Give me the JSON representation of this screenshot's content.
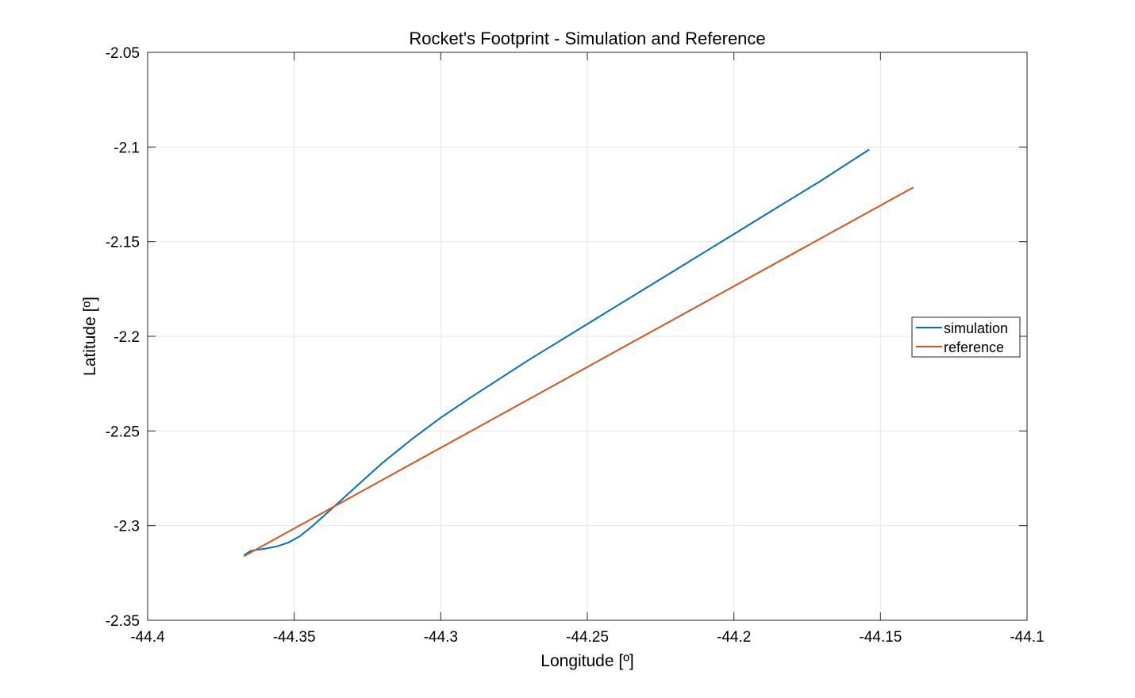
{
  "chart_data": {
    "type": "line",
    "title": "Rocket's Footprint - Simulation and Reference",
    "xlabel": "Longitude [º]",
    "ylabel": "Latitude [º]",
    "xlim": [
      -44.4,
      -44.1
    ],
    "ylim": [
      -2.35,
      -2.05
    ],
    "xticks": [
      -44.4,
      -44.35,
      -44.3,
      -44.25,
      -44.2,
      -44.15,
      -44.1
    ],
    "yticks": [
      -2.35,
      -2.3,
      -2.25,
      -2.2,
      -2.15,
      -2.1,
      -2.05
    ],
    "xtick_labels": [
      "-44.4",
      "-44.35",
      "-44.3",
      "-44.25",
      "-44.2",
      "-44.15",
      "-44.1"
    ],
    "ytick_labels": [
      "-2.35",
      "-2.3",
      "-2.25",
      "-2.2",
      "-2.15",
      "-2.1",
      "-2.05"
    ],
    "grid": true,
    "legend": {
      "position": "right",
      "entries": [
        "simulation",
        "reference"
      ]
    },
    "series": [
      {
        "name": "simulation",
        "color": "#0072BD",
        "x": [
          -44.367,
          -44.365,
          -44.363,
          -44.36,
          -44.356,
          -44.352,
          -44.348,
          -44.344,
          -44.34,
          -44.335,
          -44.33,
          -44.32,
          -44.31,
          -44.3,
          -44.29,
          -44.28,
          -44.27,
          -44.26,
          -44.25,
          -44.24,
          -44.23,
          -44.22,
          -44.21,
          -44.2,
          -44.19,
          -44.18,
          -44.17,
          -44.16,
          -44.154
        ],
        "y": [
          -2.3155,
          -2.3135,
          -2.3128,
          -2.3122,
          -2.311,
          -2.309,
          -2.3055,
          -2.3005,
          -2.295,
          -2.288,
          -2.281,
          -2.267,
          -2.2545,
          -2.243,
          -2.2325,
          -2.2225,
          -2.2125,
          -2.203,
          -2.1935,
          -2.184,
          -2.1745,
          -2.165,
          -2.1555,
          -2.146,
          -2.1365,
          -2.127,
          -2.1175,
          -2.1075,
          -2.1015
        ]
      },
      {
        "name": "reference",
        "color": "#D95319",
        "x": [
          -44.367,
          -44.139
        ],
        "y": [
          -2.316,
          -2.1215
        ]
      }
    ]
  }
}
